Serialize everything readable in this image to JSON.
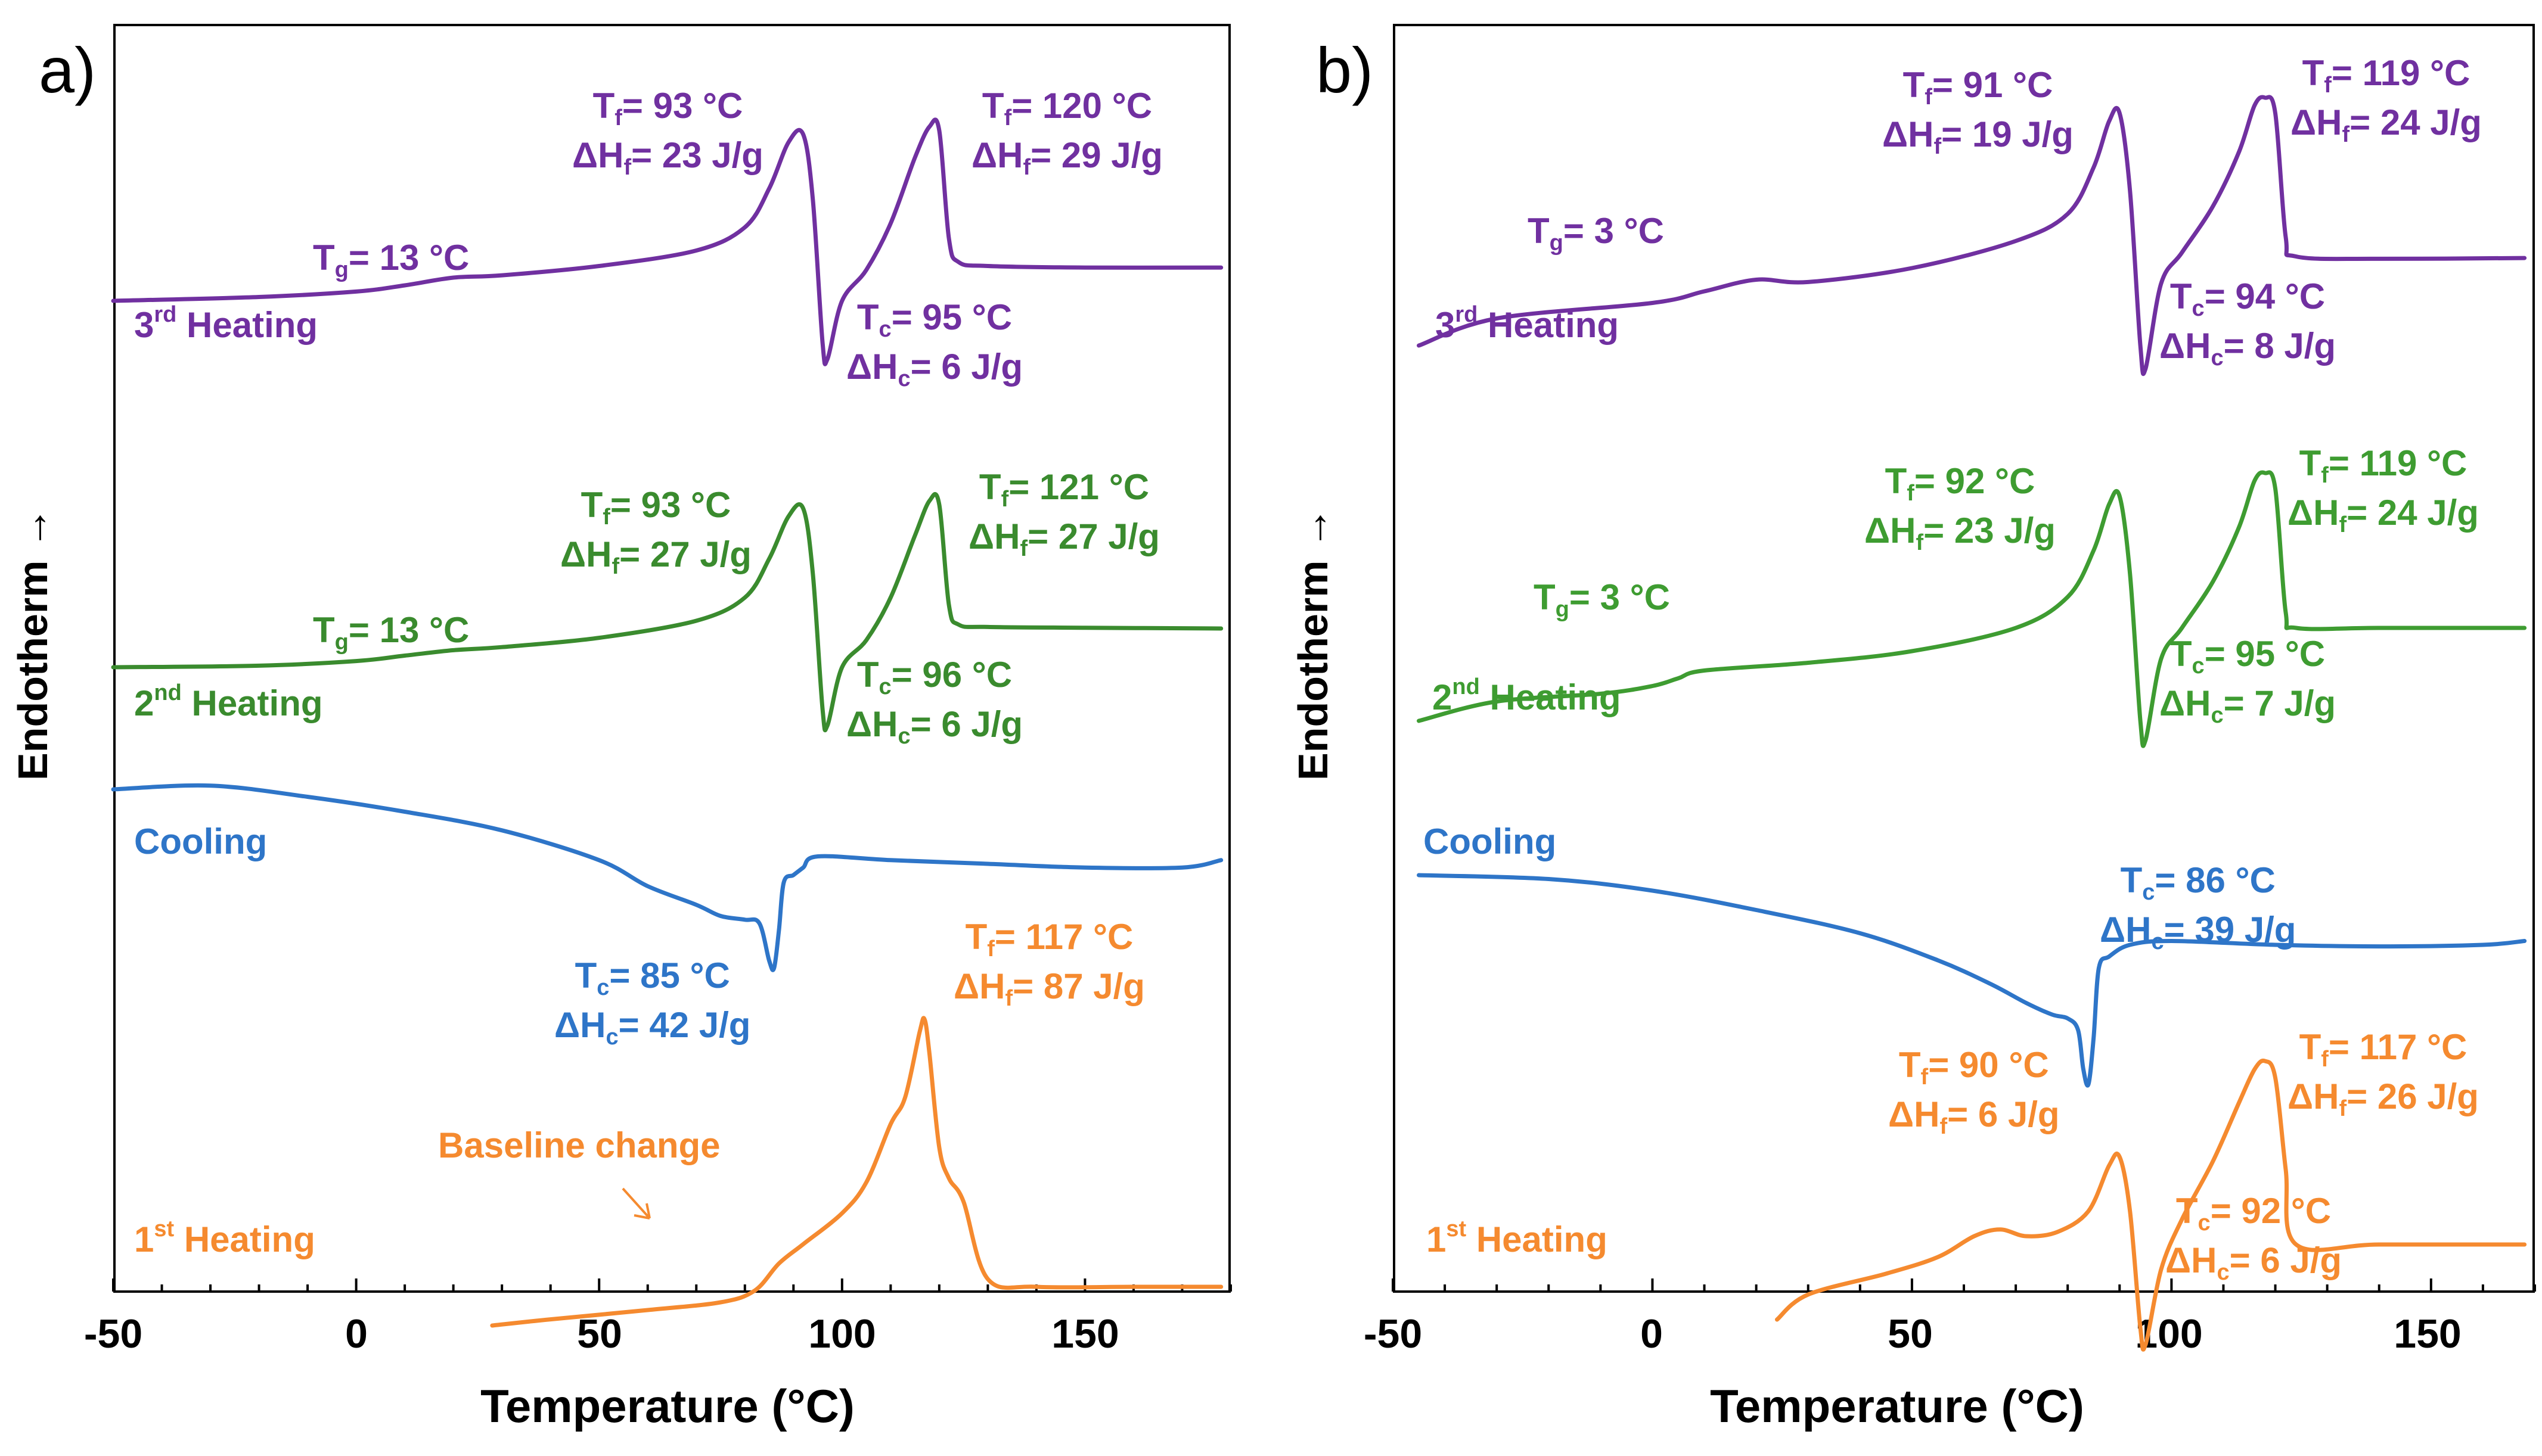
{
  "colors": {
    "third_heating": "#7030A0",
    "second_heating_a": "#3A8B2E",
    "second_heating_b": "#3E9C31",
    "cooling": "#2E75C8",
    "first_heating": "#F58A2F"
  },
  "chart_data": [
    {
      "panel": "a)",
      "type": "line",
      "xlabel": "Temperature (°C)",
      "ylabel": "Endotherm →",
      "xlim": [
        -50,
        180
      ],
      "xticks": [
        "-50",
        "0",
        "50",
        "100",
        "150"
      ],
      "y_axis": "arbitrary heat flow units (offset traces)",
      "series": [
        {
          "name": "3rd Heating",
          "label_main": "3",
          "label_sup": "rd",
          "label_rest": " Heating",
          "color": "#7030A0",
          "x": [
            -50,
            -20,
            0,
            10,
            20,
            30,
            50,
            70,
            80,
            85,
            89,
            92,
            94,
            96,
            97,
            100,
            105,
            110,
            115,
            118,
            120,
            122,
            124,
            130,
            150,
            178
          ],
          "y": [
            1.0,
            1.05,
            1.12,
            1.2,
            1.3,
            1.33,
            1.45,
            1.65,
            1.95,
            2.45,
            3.05,
            3.15,
            2.3,
            0.45,
            0.25,
            1.0,
            1.4,
            2.0,
            2.85,
            3.25,
            3.2,
            1.8,
            1.5,
            1.45,
            1.43,
            1.43
          ],
          "annotations": {
            "tg": {
              "sym": "T",
              "sub": "g",
              "val": "= 13 °C"
            },
            "peak1": [
              {
                "sym": "T",
                "sub": "f",
                "val": "= 93 °C"
              },
              {
                "sym": "ΔH",
                "sub": "f",
                "val": "= 23 J/g"
              }
            ],
            "peak2": [
              {
                "sym": "T",
                "sub": "f",
                "val": "= 120 °C"
              },
              {
                "sym": "ΔH",
                "sub": "f",
                "val": "= 29 J/g"
              }
            ],
            "cryst": [
              {
                "sym": "T",
                "sub": "c",
                "val": "= 95 °C"
              },
              {
                "sym": "ΔH",
                "sub": "c",
                "val": "= 6 J/g"
              }
            ]
          }
        },
        {
          "name": "2nd Heating",
          "label_main": "2",
          "label_sup": "nd",
          "label_rest": " Heating",
          "color": "#3A8B2E",
          "x": [
            -50,
            -20,
            0,
            10,
            20,
            30,
            50,
            70,
            80,
            85,
            89,
            92,
            94,
            96,
            97,
            100,
            105,
            110,
            115,
            118,
            120,
            122,
            124,
            130,
            150,
            178
          ],
          "y": [
            1.0,
            1.02,
            1.08,
            1.15,
            1.22,
            1.26,
            1.38,
            1.6,
            1.9,
            2.4,
            2.95,
            3.05,
            2.2,
            0.45,
            0.25,
            1.0,
            1.35,
            1.9,
            2.7,
            3.15,
            3.1,
            1.8,
            1.55,
            1.52,
            1.51,
            1.5
          ],
          "annotations": {
            "tg": {
              "sym": "T",
              "sub": "g",
              "val": "= 13 °C"
            },
            "peak1": [
              {
                "sym": "T",
                "sub": "f",
                "val": "= 93 °C"
              },
              {
                "sym": "ΔH",
                "sub": "f",
                "val": "= 27 J/g"
              }
            ],
            "peak2": [
              {
                "sym": "T",
                "sub": "f",
                "val": "= 121 °C"
              },
              {
                "sym": "ΔH",
                "sub": "f",
                "val": "= 27 J/g"
              }
            ],
            "cryst": [
              {
                "sym": "T",
                "sub": "c",
                "val": "= 96 °C"
              },
              {
                "sym": "ΔH",
                "sub": "c",
                "val": "= 6 J/g"
              }
            ]
          }
        },
        {
          "name": "Cooling",
          "label_main": "Cooling",
          "label_sup": "",
          "label_rest": "",
          "color": "#2E75C8",
          "x": [
            -50,
            -30,
            -10,
            10,
            30,
            50,
            60,
            70,
            75,
            80,
            83,
            85,
            86,
            87,
            88,
            90,
            92,
            95,
            110,
            130,
            150,
            170,
            178
          ],
          "y": [
            2.0,
            2.05,
            1.9,
            1.7,
            1.45,
            1.05,
            0.7,
            0.45,
            0.3,
            0.25,
            0.2,
            -0.3,
            -0.4,
            0.1,
            0.75,
            0.85,
            0.95,
            1.1,
            1.05,
            1.0,
            0.95,
            0.95,
            1.05
          ],
          "annotations": {
            "cryst": [
              {
                "sym": "T",
                "sub": "c",
                "val": "= 85 °C"
              },
              {
                "sym": "ΔH",
                "sub": "c",
                "val": "= 42 J/g"
              }
            ]
          }
        },
        {
          "name": "1st Heating",
          "label_main": "1",
          "label_sup": "st",
          "label_rest": " Heating",
          "color": "#F58A2F",
          "x": [
            28,
            40,
            60,
            75,
            82,
            87,
            92,
            100,
            105,
            110,
            113,
            116,
            117,
            118,
            120,
            122,
            125,
            130,
            140,
            160,
            178
          ],
          "y": [
            0.0,
            0.08,
            0.2,
            0.3,
            0.45,
            0.8,
            1.05,
            1.45,
            1.85,
            2.6,
            2.95,
            3.8,
            3.95,
            3.5,
            2.3,
            1.9,
            1.6,
            0.6,
            0.5,
            0.5,
            0.5
          ],
          "annotations": {
            "peak": [
              {
                "sym": "T",
                "sub": "f",
                "val": "= 117 °C"
              },
              {
                "sym": "ΔH",
                "sub": "f",
                "val": "= 87 J/g"
              }
            ],
            "baseline_note": "Baseline change"
          }
        }
      ]
    },
    {
      "panel": "b)",
      "type": "line",
      "xlabel": "Temperature (°C)",
      "ylabel": "Endotherm →",
      "xlim": [
        -50,
        170
      ],
      "xticks": [
        "-50",
        "0",
        "50",
        "100",
        "150"
      ],
      "y_axis": "arbitrary heat flow units (offset traces)",
      "series": [
        {
          "name": "3rd Heating",
          "label_main": "3",
          "label_sup": "rd",
          "label_rest": " Heating",
          "color": "#7030A0",
          "x": [
            -45,
            -30,
            0,
            10,
            20,
            30,
            50,
            70,
            80,
            85,
            88,
            90,
            92,
            94,
            95,
            98,
            102,
            108,
            113,
            116,
            118,
            120,
            122,
            124,
            140,
            168
          ],
          "y": [
            0.5,
            0.85,
            1.05,
            1.2,
            1.35,
            1.32,
            1.5,
            1.85,
            2.2,
            2.8,
            3.4,
            3.5,
            2.5,
            0.5,
            0.2,
            1.3,
            1.7,
            2.3,
            3.0,
            3.6,
            3.7,
            3.5,
            1.9,
            1.65,
            1.62,
            1.63
          ],
          "annotations": {
            "tg": {
              "sym": "T",
              "sub": "g",
              "val": "= 3 °C"
            },
            "peak1": [
              {
                "sym": "T",
                "sub": "f",
                "val": "= 91 °C"
              },
              {
                "sym": "ΔH",
                "sub": "f",
                "val": "= 19 J/g"
              }
            ],
            "peak2": [
              {
                "sym": "T",
                "sub": "f",
                "val": "= 119 °C"
              },
              {
                "sym": "ΔH",
                "sub": "f",
                "val": "= 24 J/g"
              }
            ],
            "cryst": [
              {
                "sym": "T",
                "sub": "c",
                "val": "= 94 °C"
              },
              {
                "sym": "ΔH",
                "sub": "c",
                "val": "= 8 J/g"
              }
            ]
          }
        },
        {
          "name": "2nd Heating",
          "label_main": "2",
          "label_sup": "nd",
          "label_rest": " Heating",
          "color": "#3E9C31",
          "x": [
            -45,
            -30,
            -10,
            0,
            5,
            10,
            30,
            50,
            70,
            80,
            85,
            88,
            90,
            92,
            94,
            95,
            98,
            102,
            108,
            113,
            116,
            118,
            120,
            122,
            124,
            140,
            168
          ],
          "y": [
            0.5,
            0.75,
            0.85,
            0.95,
            1.05,
            1.15,
            1.25,
            1.4,
            1.7,
            2.1,
            2.7,
            3.3,
            3.4,
            2.4,
            0.5,
            0.25,
            1.3,
            1.7,
            2.3,
            3.0,
            3.6,
            3.7,
            3.5,
            1.9,
            1.7,
            1.7,
            1.7
          ],
          "annotations": {
            "tg": {
              "sym": "T",
              "sub": "g",
              "val": "= 3 °C"
            },
            "peak1": [
              {
                "sym": "T",
                "sub": "f",
                "val": "= 92 °C"
              },
              {
                "sym": "ΔH",
                "sub": "f",
                "val": "= 23 J/g"
              }
            ],
            "peak2": [
              {
                "sym": "T",
                "sub": "f",
                "val": "= 119 °C"
              },
              {
                "sym": "ΔH",
                "sub": "f",
                "val": "= 24 J/g"
              }
            ],
            "cryst": [
              {
                "sym": "T",
                "sub": "c",
                "val": "= 95 °C"
              },
              {
                "sym": "ΔH",
                "sub": "c",
                "val": "= 7 J/g"
              }
            ]
          }
        },
        {
          "name": "Cooling",
          "label_main": "Cooling",
          "label_sup": "",
          "label_rest": "",
          "color": "#2E75C8",
          "x": [
            -45,
            -20,
            0,
            20,
            40,
            55,
            65,
            72,
            77,
            80,
            82,
            83,
            84,
            85,
            86,
            88,
            92,
            100,
            120,
            140,
            160,
            168
          ],
          "y": [
            2.2,
            2.15,
            2.0,
            1.75,
            1.45,
            1.1,
            0.8,
            0.55,
            0.4,
            0.35,
            0.2,
            -0.3,
            -0.5,
            0.1,
            1.0,
            1.15,
            1.3,
            1.35,
            1.3,
            1.28,
            1.3,
            1.35
          ],
          "annotations": {
            "cryst": [
              {
                "sym": "T",
                "sub": "c",
                "val": "= 86 °C"
              },
              {
                "sym": "ΔH",
                "sub": "c",
                "val": "= 39 J/g"
              }
            ]
          }
        },
        {
          "name": "1st Heating",
          "label_main": "1",
          "label_sup": "st",
          "label_rest": " Heating",
          "color": "#F58A2F",
          "x": [
            24,
            30,
            45,
            55,
            62,
            67,
            72,
            78,
            84,
            88,
            90,
            92,
            94,
            95,
            98,
            102,
            108,
            113,
            116,
            118,
            120,
            122,
            124,
            140,
            168
          ],
          "y": [
            0.0,
            0.3,
            0.55,
            0.75,
            1.0,
            1.08,
            1.0,
            1.05,
            1.3,
            1.85,
            1.95,
            1.3,
            -0.1,
            -0.3,
            0.6,
            1.2,
            1.9,
            2.6,
            3.0,
            3.1,
            2.9,
            1.8,
            0.9,
            0.9,
            0.9
          ],
          "annotations": {
            "peak1": [
              {
                "sym": "T",
                "sub": "f",
                "val": "= 90 °C"
              },
              {
                "sym": "ΔH",
                "sub": "f",
                "val": "= 6 J/g"
              }
            ],
            "peak2": [
              {
                "sym": "T",
                "sub": "f",
                "val": "= 117 °C"
              },
              {
                "sym": "ΔH",
                "sub": "f",
                "val": "= 26 J/g"
              }
            ],
            "cryst": [
              {
                "sym": "T",
                "sub": "c",
                "val": "= 92 °C"
              },
              {
                "sym": "ΔH",
                "sub": "c",
                "val": "= 6 J/g"
              }
            ]
          }
        }
      ]
    }
  ]
}
